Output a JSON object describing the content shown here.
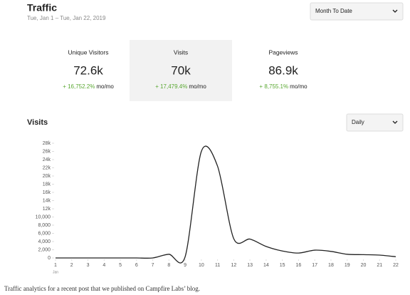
{
  "header": {
    "title": "Traffic",
    "subtitle": "Tue, Jan 1 – Tue, Jan 22, 2019",
    "range_select": "Month To Date"
  },
  "stats": [
    {
      "label": "Unique Visitors",
      "value": "72.6k",
      "change": "+ 16,752.2%",
      "period": "mo/mo"
    },
    {
      "label": "Visits",
      "value": "70k",
      "change": "+ 17,479.4%",
      "period": "mo/mo"
    },
    {
      "label": "Pageviews",
      "value": "86.9k",
      "change": "+ 8,755.1%",
      "period": "mo/mo"
    }
  ],
  "interval_select": "Daily",
  "chart_data": {
    "type": "line",
    "title": "Visits",
    "color": "#222222",
    "x": [
      1,
      2,
      3,
      4,
      5,
      6,
      7,
      8,
      9,
      10,
      11,
      12,
      13,
      14,
      15,
      16,
      17,
      18,
      19,
      20,
      21,
      22
    ],
    "values": [
      0,
      0,
      0,
      0,
      0,
      0,
      0,
      900,
      300,
      26000,
      22400,
      4700,
      4600,
      2800,
      1700,
      1200,
      1900,
      1600,
      900,
      800,
      700,
      300
    ],
    "xlim": [
      1,
      22
    ],
    "xticks": [
      1,
      2,
      3,
      4,
      5,
      6,
      7,
      8,
      9,
      10,
      11,
      12,
      13,
      14,
      15,
      16,
      17,
      18,
      19,
      20,
      21,
      22
    ],
    "xtick_sublabel": "Jan",
    "ylim": [
      0,
      28000
    ],
    "yticks": [
      0,
      {
        "value": 2000,
        "label": "2,000"
      },
      {
        "value": 4000,
        "label": "4,000"
      },
      {
        "value": 6000,
        "label": "6,000"
      },
      {
        "value": 8000,
        "label": "8,000"
      },
      {
        "value": 10000,
        "label": "10,000"
      },
      {
        "value": 12000,
        "label": "12k"
      },
      {
        "value": 14000,
        "label": "14k"
      },
      {
        "value": 16000,
        "label": "16k"
      },
      {
        "value": 18000,
        "label": "18k"
      },
      {
        "value": 20000,
        "label": "20k"
      },
      {
        "value": 22000,
        "label": "22k"
      },
      {
        "value": 24000,
        "label": "24k"
      },
      {
        "value": 26000,
        "label": "26k"
      },
      {
        "value": 28000,
        "label": "28k"
      }
    ]
  },
  "caption": "Traffic analytics for a recent post that we published on Campfire Labs’ blog."
}
